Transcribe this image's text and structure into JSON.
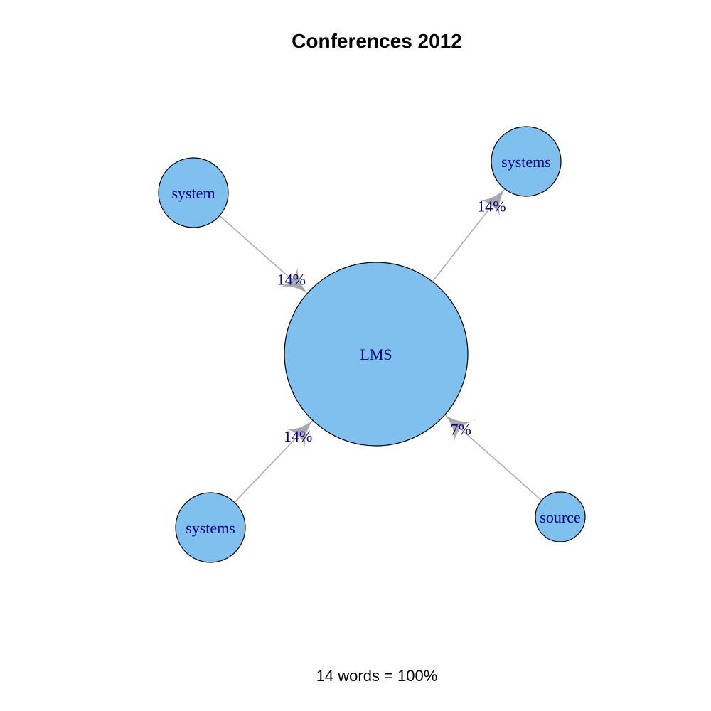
{
  "title": "Conferences 2012",
  "footer": "14 words = 100%",
  "colors": {
    "node_fill": "#80C0EE",
    "node_stroke": "#000000",
    "edge": "#A9A9A9",
    "label": "#00008B"
  },
  "nodes": [
    {
      "id": "lms",
      "label": "LMS"
    },
    {
      "id": "system",
      "label": "system"
    },
    {
      "id": "systems-top",
      "label": "systems"
    },
    {
      "id": "systems-bottom",
      "label": "systems"
    },
    {
      "id": "source",
      "label": "source"
    }
  ],
  "edges": [
    {
      "from": "system",
      "to": "lms",
      "label": "14%"
    },
    {
      "from": "lms",
      "to": "systems-top",
      "label": "14%"
    },
    {
      "from": "systems-bottom",
      "to": "lms",
      "label": "14%"
    },
    {
      "from": "source",
      "to": "lms",
      "label": "7%"
    }
  ]
}
